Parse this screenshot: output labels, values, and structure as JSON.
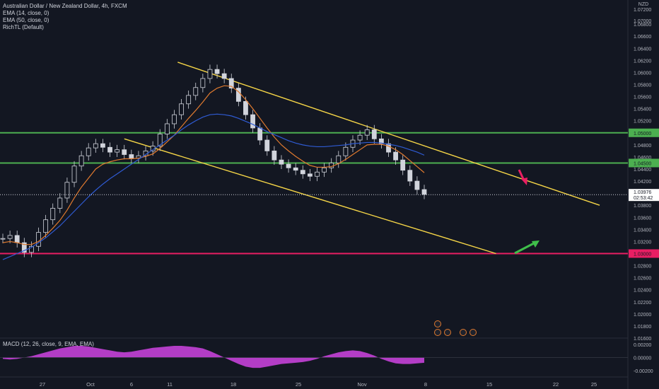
{
  "header": {
    "symbol_line": "Australian Dollar / New Zealand Dollar, 4h, FXCM",
    "indicators": [
      "EMA (14, close, 0)",
      "EMA (50, close, 0)",
      "RichTL (Default)"
    ]
  },
  "currency_label": "NZD",
  "macd_label": "MACD (12, 26, close, 9, EMA, EMA)",
  "colors": {
    "background": "#131722",
    "bull": "#e8e8e8",
    "bear": "#e8e8e8",
    "ema14": "#e07a2f",
    "ema50": "#2f5bd3",
    "channel": "#f5d547",
    "support_resistance": "#4caf50",
    "target": "#e91e63",
    "macd_hist": "#b33dc6",
    "arrow_up": "#3fbf4a",
    "arrow_down": "#e91e63"
  },
  "chart_data": {
    "type": "candlestick",
    "price_axis": {
      "min": 1.016,
      "max": 1.072,
      "ticks": [
        "1.06800",
        "1.06600",
        "1.06400",
        "1.06200",
        "1.06000",
        "1.05800",
        "1.05600",
        "1.05400",
        "1.05200",
        "1.05000",
        "1.04800",
        "1.04600",
        "1.04400",
        "1.04200",
        "1.04000",
        "1.03800",
        "1.03600",
        "1.03400",
        "1.03200",
        "1.03000",
        "1.02800",
        "1.02600",
        "1.02400",
        "1.02200",
        "1.02000",
        "1.01800",
        "1.01600"
      ],
      "top_partial_tick": "1.07200",
      "partial_tick_2": "1.07000"
    },
    "time_axis": {
      "labels": [
        "27",
        "Oct",
        "6",
        "11",
        "18",
        "25",
        "Nov",
        "8",
        "15",
        "22",
        "25"
      ]
    },
    "time_axis_labels": [
      "27",
      "Oct",
      "6",
      "11",
      "18",
      "25",
      "Nov",
      "8",
      "15",
      "22",
      "25"
    ],
    "horizontal_levels": [
      {
        "price": 1.05,
        "label": "1.05000",
        "kind": "resistance"
      },
      {
        "price": 1.045,
        "label": "1.04500",
        "kind": "support"
      },
      {
        "price": 1.03,
        "label": "1.03000",
        "kind": "target"
      }
    ],
    "current_price": {
      "value": "1.03976",
      "countdown": "02:53:42"
    },
    "channel": {
      "upper": [
        {
          "t": 0.283,
          "p": 1.0617
        },
        {
          "t": 0.955,
          "p": 1.038
        }
      ],
      "lower": [
        {
          "t": 0.198,
          "p": 1.049
        },
        {
          "t": 0.79,
          "p": 1.03
        }
      ]
    },
    "close_path": [
      1.0325,
      1.033,
      1.0318,
      1.0302,
      1.0312,
      1.0335,
      1.0356,
      1.0375,
      1.0392,
      1.0418,
      1.0445,
      1.0462,
      1.0475,
      1.0482,
      1.0476,
      1.0468,
      1.0472,
      1.0464,
      1.0458,
      1.0462,
      1.047,
      1.0478,
      1.0498,
      1.0515,
      1.053,
      1.0548,
      1.0562,
      1.0575,
      1.059,
      1.0605,
      1.0598,
      1.059,
      1.0574,
      1.0552,
      1.053,
      1.0508,
      1.0488,
      1.047,
      1.0455,
      1.0448,
      1.0442,
      1.0438,
      1.0432,
      1.0428,
      1.0435,
      1.0442,
      1.045,
      1.0462,
      1.0476,
      1.0488,
      1.0496,
      1.0505,
      1.049,
      1.0482,
      1.0468,
      1.0455,
      1.0438,
      1.042,
      1.0406,
      1.0398
    ],
    "ema14_path": [
      1.0318,
      1.032,
      1.0318,
      1.0315,
      1.0315,
      1.032,
      1.033,
      1.0342,
      1.0355,
      1.0372,
      1.0392,
      1.041,
      1.0425,
      1.044,
      1.0448,
      1.0452,
      1.0455,
      1.0457,
      1.0457,
      1.0458,
      1.0461,
      1.0465,
      1.0474,
      1.0485,
      1.0496,
      1.051,
      1.0524,
      1.0537,
      1.0551,
      1.0566,
      1.0574,
      1.0578,
      1.0577,
      1.0568,
      1.0555,
      1.054,
      1.0524,
      1.0508,
      1.0493,
      1.048,
      1.047,
      1.0461,
      1.0453,
      1.0446,
      1.0443,
      1.0443,
      1.0444,
      1.0449,
      1.0456,
      1.0464,
      1.0472,
      1.048,
      1.0481,
      1.0481,
      1.0478,
      1.0472,
      1.0464,
      1.0454,
      1.0444,
      1.0434
    ],
    "ema50_path": [
      1.029,
      1.0295,
      1.03,
      1.0305,
      1.031,
      1.0318,
      1.0326,
      1.0336,
      1.0346,
      1.0358,
      1.037,
      1.0382,
      1.0394,
      1.0405,
      1.0415,
      1.0424,
      1.0432,
      1.044,
      1.0448,
      1.0456,
      1.0464,
      1.0472,
      1.048,
      1.0488,
      1.0496,
      1.0505,
      1.0513,
      1.052,
      1.0526,
      1.053,
      1.0531,
      1.053,
      1.0528,
      1.0524,
      1.0519,
      1.0514,
      1.0508,
      1.0502,
      1.0497,
      1.0492,
      1.0487,
      1.0483,
      1.048,
      1.0478,
      1.0477,
      1.0477,
      1.0478,
      1.0479,
      1.048,
      1.0482,
      1.0483,
      1.0484,
      1.0484,
      1.0483,
      1.0481,
      1.0479,
      1.0476,
      1.0472,
      1.0468,
      1.0463
    ],
    "macd_hist": [
      -0.0002,
      -0.0003,
      -0.0002,
      0.0,
      0.0002,
      0.0005,
      0.0008,
      0.0011,
      0.0014,
      0.0016,
      0.0018,
      0.0018,
      0.0017,
      0.0015,
      0.0013,
      0.0011,
      0.0009,
      0.0008,
      0.0009,
      0.0011,
      0.0013,
      0.0015,
      0.0016,
      0.0017,
      0.0018,
      0.0018,
      0.0017,
      0.0016,
      0.0014,
      0.001,
      0.0005,
      0.0,
      -0.0005,
      -0.001,
      -0.0014,
      -0.0016,
      -0.0016,
      -0.0014,
      -0.0012,
      -0.001,
      -0.0009,
      -0.0008,
      -0.0007,
      -0.0005,
      -0.0002,
      0.0002,
      0.0005,
      0.0008,
      0.001,
      0.0011,
      0.001,
      0.0007,
      0.0003,
      -0.0002,
      -0.0006,
      -0.0009,
      -0.001,
      -0.001,
      -0.0009,
      -0.0008
    ],
    "macd_axis": {
      "ticks": [
        "0.00200",
        "0.00000",
        "-0.00200"
      ],
      "min": -0.003,
      "max": 0.003
    }
  }
}
